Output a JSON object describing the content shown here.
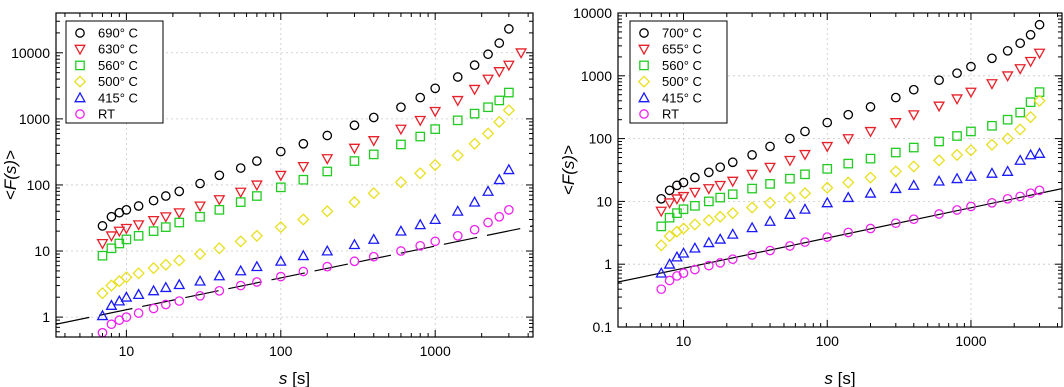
{
  "chart_data": [
    {
      "type": "scatter",
      "title": "",
      "xlabel": "s [s]",
      "xlabel_var": "s",
      "xlabel_unit": " [s]",
      "ylabel": "<F(s)>",
      "ylabel_var": "F(s)",
      "xscale": "log",
      "yscale": "log",
      "xlim": [
        3.5,
        4300
      ],
      "ylim": [
        0.5,
        40000
      ],
      "xticks": [
        10,
        100,
        1000
      ],
      "xtick_labels": [
        "10",
        "100",
        "1000"
      ],
      "yticks": [
        1,
        10,
        100,
        1000,
        10000
      ],
      "ytick_labels": [
        "1",
        "10",
        "100",
        "1000",
        "10000"
      ],
      "grid": true,
      "legend_position": "top-left",
      "fit_line": {
        "style": "dashed",
        "x": [
          3.5,
          4300
        ],
        "y": [
          0.78,
          24
        ]
      },
      "series": [
        {
          "name": "690° C",
          "marker": "circle",
          "color": "#000000",
          "x": [
            7,
            8,
            9,
            10,
            12,
            15,
            18,
            22,
            30,
            40,
            55,
            70,
            100,
            140,
            200,
            300,
            400,
            600,
            800,
            1000,
            1400,
            1800,
            2200,
            2600,
            3000
          ],
          "y": [
            24,
            33,
            38,
            42,
            48,
            58,
            68,
            80,
            105,
            140,
            180,
            230,
            320,
            420,
            560,
            800,
            1050,
            1500,
            2100,
            2900,
            4300,
            6500,
            9500,
            14000,
            23000
          ]
        },
        {
          "name": "630° C",
          "marker": "triangle-down",
          "color": "#e8202a",
          "x": [
            7,
            8,
            9,
            10,
            12,
            15,
            18,
            22,
            30,
            40,
            55,
            70,
            100,
            140,
            200,
            300,
            400,
            600,
            800,
            1000,
            1400,
            1800,
            2200,
            2600,
            3000,
            3600
          ],
          "y": [
            13,
            17,
            20,
            22,
            25,
            29,
            33,
            38,
            48,
            60,
            78,
            100,
            140,
            190,
            250,
            360,
            470,
            700,
            950,
            1300,
            1900,
            2800,
            4000,
            5200,
            6500,
            10000
          ]
        },
        {
          "name": "560° C",
          "marker": "square",
          "color": "#22cc22",
          "x": [
            7,
            8,
            9,
            10,
            12,
            15,
            18,
            22,
            30,
            40,
            55,
            70,
            100,
            140,
            200,
            300,
            400,
            600,
            800,
            1000,
            1400,
            1800,
            2200,
            2600,
            3000
          ],
          "y": [
            8.5,
            11,
            13,
            15,
            17,
            20,
            23,
            27,
            33,
            42,
            55,
            68,
            92,
            120,
            160,
            230,
            290,
            410,
            540,
            700,
            950,
            1200,
            1500,
            1900,
            2500
          ]
        },
        {
          "name": "500° C",
          "marker": "diamond",
          "color": "#e8e020",
          "x": [
            7,
            8,
            9,
            10,
            12,
            15,
            18,
            22,
            30,
            40,
            55,
            70,
            100,
            140,
            200,
            300,
            400,
            600,
            800,
            1000,
            1400,
            1800,
            2200,
            2600,
            3000
          ],
          "y": [
            2.3,
            3,
            3.5,
            4,
            4.6,
            5.5,
            6.2,
            7.2,
            9,
            11,
            14,
            17,
            23,
            30,
            40,
            55,
            75,
            110,
            150,
            200,
            280,
            420,
            600,
            900,
            1350
          ]
        },
        {
          "name": "415° C",
          "marker": "triangle-up",
          "color": "#1a1aff",
          "x": [
            7,
            8,
            9,
            10,
            12,
            15,
            18,
            22,
            30,
            40,
            55,
            70,
            100,
            140,
            200,
            300,
            400,
            600,
            800,
            1000,
            1400,
            1800,
            2200,
            2600,
            3000
          ],
          "y": [
            1.05,
            1.5,
            1.75,
            2,
            2.2,
            2.5,
            2.8,
            3.1,
            3.5,
            4.2,
            5,
            5.8,
            7,
            8.5,
            10,
            12.5,
            15,
            20,
            25,
            30,
            40,
            55,
            80,
            120,
            170
          ]
        },
        {
          "name": "RT",
          "marker": "circle",
          "color": "#ee22ee",
          "x": [
            7,
            8,
            9,
            10,
            12,
            15,
            18,
            22,
            30,
            40,
            55,
            70,
            100,
            140,
            200,
            300,
            400,
            600,
            800,
            1000,
            1400,
            1800,
            2200,
            2600,
            3000
          ],
          "y": [
            0.58,
            0.78,
            0.9,
            1,
            1.15,
            1.35,
            1.55,
            1.75,
            2.1,
            2.5,
            3,
            3.4,
            4.1,
            4.9,
            5.8,
            7,
            8.2,
            10,
            12,
            14,
            17,
            21,
            27,
            33,
            42
          ]
        }
      ]
    },
    {
      "type": "scatter",
      "title": "",
      "xlabel": "s [s]",
      "xlabel_var": "s",
      "xlabel_unit": " [s]",
      "ylabel": "<F(s)>",
      "ylabel_var": "F(s)",
      "xscale": "log",
      "yscale": "log",
      "xlim": [
        3.5,
        4300
      ],
      "ylim": [
        0.1,
        10000
      ],
      "xticks": [
        10,
        100,
        1000
      ],
      "xtick_labels": [
        "10",
        "100",
        "1000"
      ],
      "yticks": [
        0.1,
        1,
        10,
        100,
        1000,
        10000
      ],
      "ytick_labels": [
        "0.1",
        "1",
        "10",
        "100",
        "1000",
        "10000"
      ],
      "grid": true,
      "legend_position": "top-left",
      "fit_line": {
        "style": "solid",
        "x": [
          3.5,
          4300
        ],
        "y": [
          0.52,
          16
        ]
      },
      "series": [
        {
          "name": "700° C",
          "marker": "circle",
          "color": "#000000",
          "x": [
            7,
            8,
            9,
            10,
            12,
            15,
            18,
            22,
            30,
            40,
            55,
            70,
            100,
            140,
            200,
            300,
            400,
            600,
            800,
            1000,
            1400,
            1800,
            2200,
            2600,
            3000
          ],
          "y": [
            11,
            15,
            18,
            20,
            24,
            29,
            35,
            42,
            55,
            75,
            100,
            130,
            180,
            240,
            320,
            450,
            600,
            850,
            1100,
            1400,
            1900,
            2500,
            3300,
            4500,
            6500
          ]
        },
        {
          "name": "655° C",
          "marker": "triangle-down",
          "color": "#e8202a",
          "x": [
            7,
            8,
            9,
            10,
            12,
            15,
            18,
            22,
            30,
            40,
            55,
            70,
            100,
            140,
            200,
            300,
            400,
            600,
            800,
            1000,
            1400,
            1800,
            2200,
            2600,
            3000
          ],
          "y": [
            7,
            9.5,
            11,
            12,
            14,
            16,
            18,
            21,
            27,
            35,
            45,
            56,
            75,
            100,
            130,
            180,
            240,
            330,
            430,
            550,
            750,
            1000,
            1300,
            1700,
            2300
          ]
        },
        {
          "name": "560° C",
          "marker": "square",
          "color": "#22cc22",
          "x": [
            7,
            8,
            9,
            10,
            12,
            15,
            18,
            22,
            30,
            40,
            55,
            70,
            100,
            140,
            200,
            300,
            400,
            600,
            800,
            1000,
            1400,
            1800,
            2200,
            2600,
            3000
          ],
          "y": [
            4,
            5.5,
            6.5,
            7.5,
            8.5,
            10,
            11.5,
            13,
            16,
            19,
            23,
            27,
            33,
            40,
            48,
            60,
            72,
            90,
            110,
            130,
            160,
            200,
            260,
            380,
            550
          ]
        },
        {
          "name": "500° C",
          "marker": "diamond",
          "color": "#e8e020",
          "x": [
            7,
            8,
            9,
            10,
            12,
            15,
            18,
            22,
            30,
            40,
            55,
            70,
            100,
            140,
            200,
            300,
            400,
            600,
            800,
            1000,
            1400,
            1800,
            2200,
            2600,
            3000
          ],
          "y": [
            2,
            2.8,
            3.3,
            3.7,
            4.3,
            5,
            5.7,
            6.5,
            8,
            9.5,
            11.5,
            13.5,
            16.5,
            20,
            24,
            30,
            36,
            45,
            55,
            65,
            80,
            100,
            140,
            220,
            400
          ]
        },
        {
          "name": "415° C",
          "marker": "triangle-up",
          "color": "#1a1aff",
          "x": [
            7,
            8,
            9,
            10,
            12,
            15,
            18,
            22,
            30,
            40,
            55,
            70,
            100,
            140,
            200,
            300,
            400,
            600,
            800,
            1000,
            1400,
            1800,
            2200,
            2600,
            3000
          ],
          "y": [
            0.72,
            1,
            1.3,
            1.5,
            1.8,
            2.2,
            2.5,
            3,
            3.8,
            4.8,
            6.2,
            7.5,
            9.5,
            11.5,
            13.5,
            16,
            18,
            21,
            23,
            25,
            28,
            30,
            45,
            55,
            58
          ]
        },
        {
          "name": "RT",
          "marker": "circle",
          "color": "#ee22ee",
          "x": [
            7,
            8,
            9,
            10,
            12,
            15,
            18,
            22,
            30,
            40,
            55,
            70,
            100,
            140,
            200,
            300,
            400,
            600,
            800,
            1000,
            1400,
            1800,
            2200,
            2600,
            3000
          ],
          "y": [
            0.4,
            0.55,
            0.65,
            0.72,
            0.82,
            0.95,
            1.05,
            1.2,
            1.4,
            1.65,
            1.95,
            2.25,
            2.7,
            3.2,
            3.7,
            4.5,
            5.2,
            6.3,
            7.3,
            8.3,
            9.5,
            11,
            12,
            13.5,
            15
          ]
        }
      ]
    }
  ]
}
